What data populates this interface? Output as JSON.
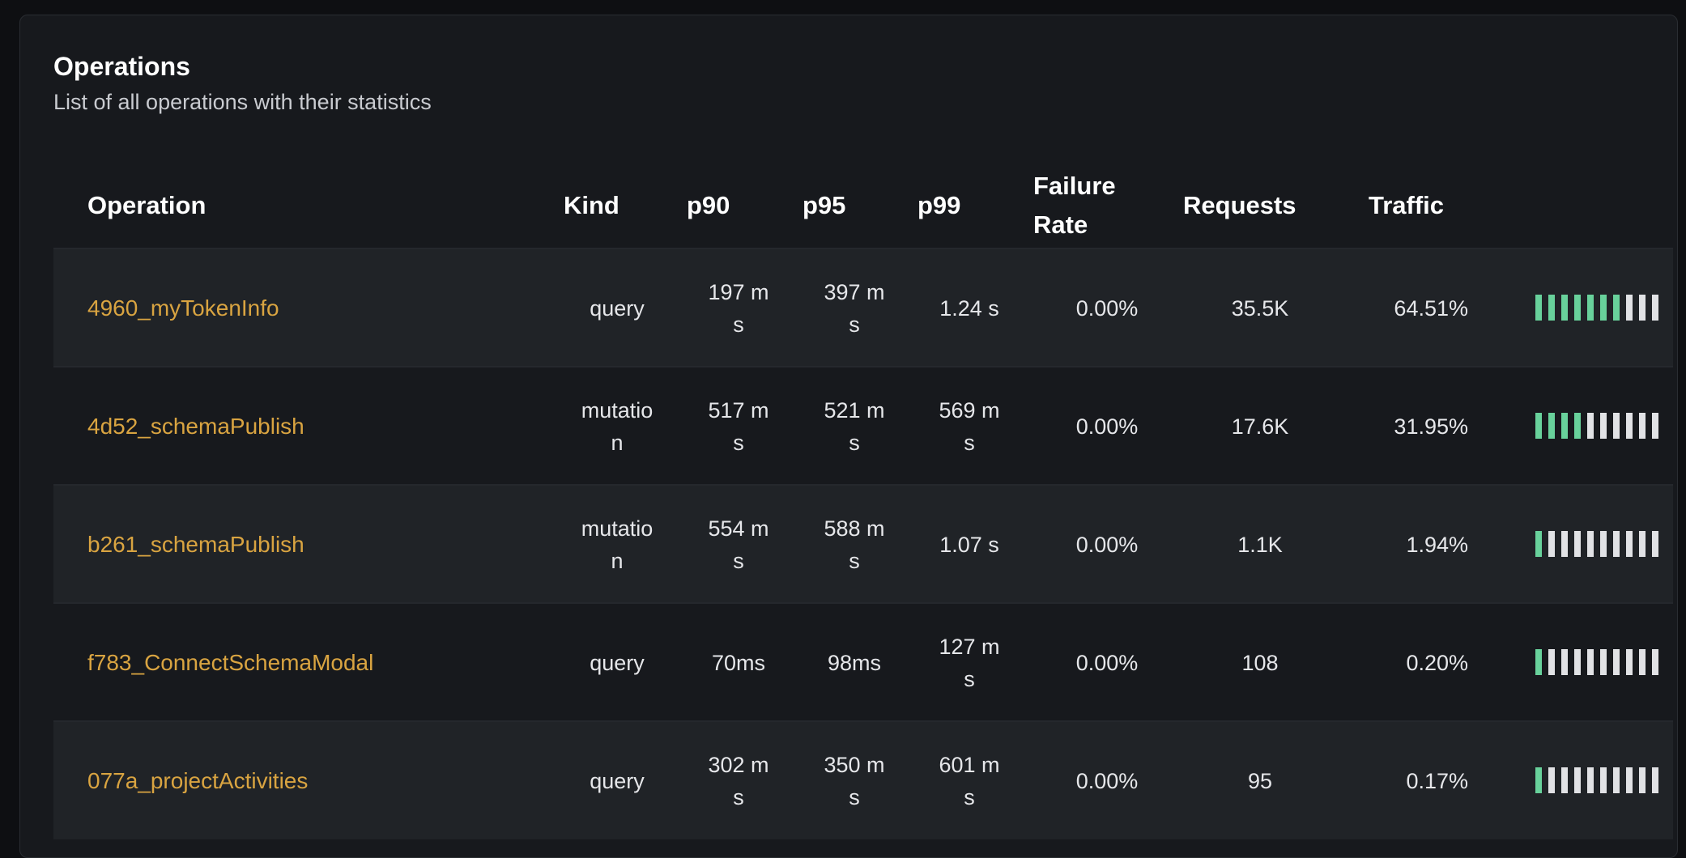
{
  "header": {
    "title": "Operations",
    "subtitle": "List of all operations with their statistics"
  },
  "columns": [
    "Operation",
    "Kind",
    "p90",
    "p95",
    "p99",
    "Failure Rate",
    "Requests",
    "Traffic"
  ],
  "colors": {
    "operation_link": "#d9a441",
    "traffic_on": "#68d19b",
    "traffic_off": "#e1e2e5"
  },
  "rows": [
    {
      "operation": "4960_myTokenInfo",
      "kind": "query",
      "p90": "197 ms",
      "p95": "397 ms",
      "p99": "1.24 s",
      "failure_rate": "0.00%",
      "requests": "35.5K",
      "traffic": "64.51%",
      "traffic_bars_filled": 7,
      "traffic_bars_total": 10
    },
    {
      "operation": "4d52_schemaPublish",
      "kind": "mutation",
      "p90": "517 ms",
      "p95": "521 ms",
      "p99": "569 ms",
      "failure_rate": "0.00%",
      "requests": "17.6K",
      "traffic": "31.95%",
      "traffic_bars_filled": 4,
      "traffic_bars_total": 10
    },
    {
      "operation": "b261_schemaPublish",
      "kind": "mutation",
      "p90": "554 ms",
      "p95": "588 ms",
      "p99": "1.07 s",
      "failure_rate": "0.00%",
      "requests": "1.1K",
      "traffic": "1.94%",
      "traffic_bars_filled": 1,
      "traffic_bars_total": 10
    },
    {
      "operation": "f783_ConnectSchemaModal",
      "kind": "query",
      "p90": "70ms",
      "p95": "98ms",
      "p99": "127 ms",
      "failure_rate": "0.00%",
      "requests": "108",
      "traffic": "0.20%",
      "traffic_bars_filled": 1,
      "traffic_bars_total": 10
    },
    {
      "operation": "077a_projectActivities",
      "kind": "query",
      "p90": "302 ms",
      "p95": "350 ms",
      "p99": "601 ms",
      "failure_rate": "0.00%",
      "requests": "95",
      "traffic": "0.17%",
      "traffic_bars_filled": 1,
      "traffic_bars_total": 10
    }
  ]
}
